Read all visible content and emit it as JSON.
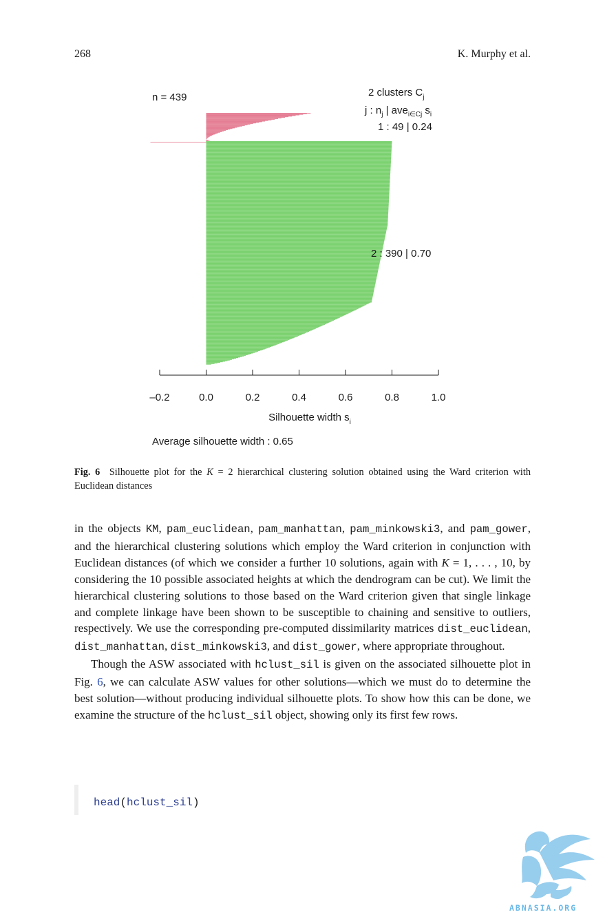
{
  "header": {
    "page_number": "268",
    "running_head": "K. Murphy et al."
  },
  "chart_data": {
    "type": "bar",
    "orientation": "horizontal",
    "title": "",
    "n_label": "n = 439",
    "legend": {
      "header_1": "2  clusters  C",
      "header_1_sub": "j",
      "header_2_prefix": "j :  n",
      "header_2_sub_j": "j",
      "header_2_mid": " | ave",
      "header_2_sub_i": "i∈Cj",
      "header_2_end": "  s",
      "header_2_sub_s": "i"
    },
    "clusters": [
      {
        "j": 1,
        "label": "1 :   49  |  0.24",
        "n": 49,
        "ave_width": 0.24,
        "color": "#e06680",
        "max_width": 0.45,
        "min_width": -0.24
      },
      {
        "j": 2,
        "label": "2 :   390  |  0.70",
        "n": 390,
        "ave_width": 0.7,
        "color": "#63c955",
        "max_width": 0.8,
        "min_width": 0.0
      }
    ],
    "xlim": [
      -0.2,
      1.0
    ],
    "xticks": [
      -0.2,
      0.0,
      0.2,
      0.4,
      0.6,
      0.8,
      1.0
    ],
    "xtick_labels": [
      "–0.2",
      "0.0",
      "0.2",
      "0.4",
      "0.6",
      "0.8",
      "1.0"
    ],
    "xlabel": "Silhouette width s",
    "xlabel_sub": "i",
    "average_label": "Average silhouette width :  0.65"
  },
  "caption": {
    "label": "Fig. 6",
    "text_1": "Silhouette plot for the ",
    "K": "K",
    "text_2": " = 2 hierarchical clustering solution obtained using the Ward criterion with Euclidean distances"
  },
  "body": {
    "p1": [
      {
        "t": "in the objects "
      },
      {
        "c": "KM"
      },
      {
        "t": ", "
      },
      {
        "c": "pam_euclidean"
      },
      {
        "t": ", "
      },
      {
        "c": "pam_manhattan"
      },
      {
        "t": ", "
      },
      {
        "c": "pam_minkowski3"
      },
      {
        "t": ", and "
      },
      {
        "c": "pam_gower"
      },
      {
        "t": ", and the hierarchical clustering solutions which employ the Ward criterion in conjunction with Euclidean distances (of which we consider a further 10 solutions, again with "
      },
      {
        "i": "K"
      },
      {
        "t": " = 1, . . . , 10, by considering the 10 possible associated heights at which the dendrogram can be cut). We limit the hierarchical clustering solutions to those based on the Ward criterion given that single linkage and complete linkage have been shown to be susceptible to chaining and sensitive to outliers, respectively. We use the corresponding pre-computed dissimilarity matri­ces "
      },
      {
        "c": "dist_euclidean"
      },
      {
        "t": ", "
      },
      {
        "c": "dist_manhattan"
      },
      {
        "t": ", "
      },
      {
        "c": "dist_minkowski3"
      },
      {
        "t": ", and "
      },
      {
        "c": "dist_gower"
      },
      {
        "t": ", where appropriate throughout."
      }
    ],
    "p2": [
      {
        "t": "Though the ASW associated with "
      },
      {
        "c": "hclust_sil"
      },
      {
        "t": " is given on the associated silhouette plot in Fig. "
      },
      {
        "l": "6"
      },
      {
        "t": ", we can calculate ASW values for other solutions—which we must do to determine the best solution—without producing individual silhouette plots. To show how this can be done, we examine the structure of the "
      },
      {
        "c": "hclust_sil"
      },
      {
        "t": " object, showing only its first few rows."
      }
    ]
  },
  "code": {
    "func": "head",
    "open": "(",
    "arg": "hclust_sil",
    "close": ")"
  },
  "watermark": {
    "text": "ABNASIA.ORG",
    "color": "#6ab8e8"
  }
}
